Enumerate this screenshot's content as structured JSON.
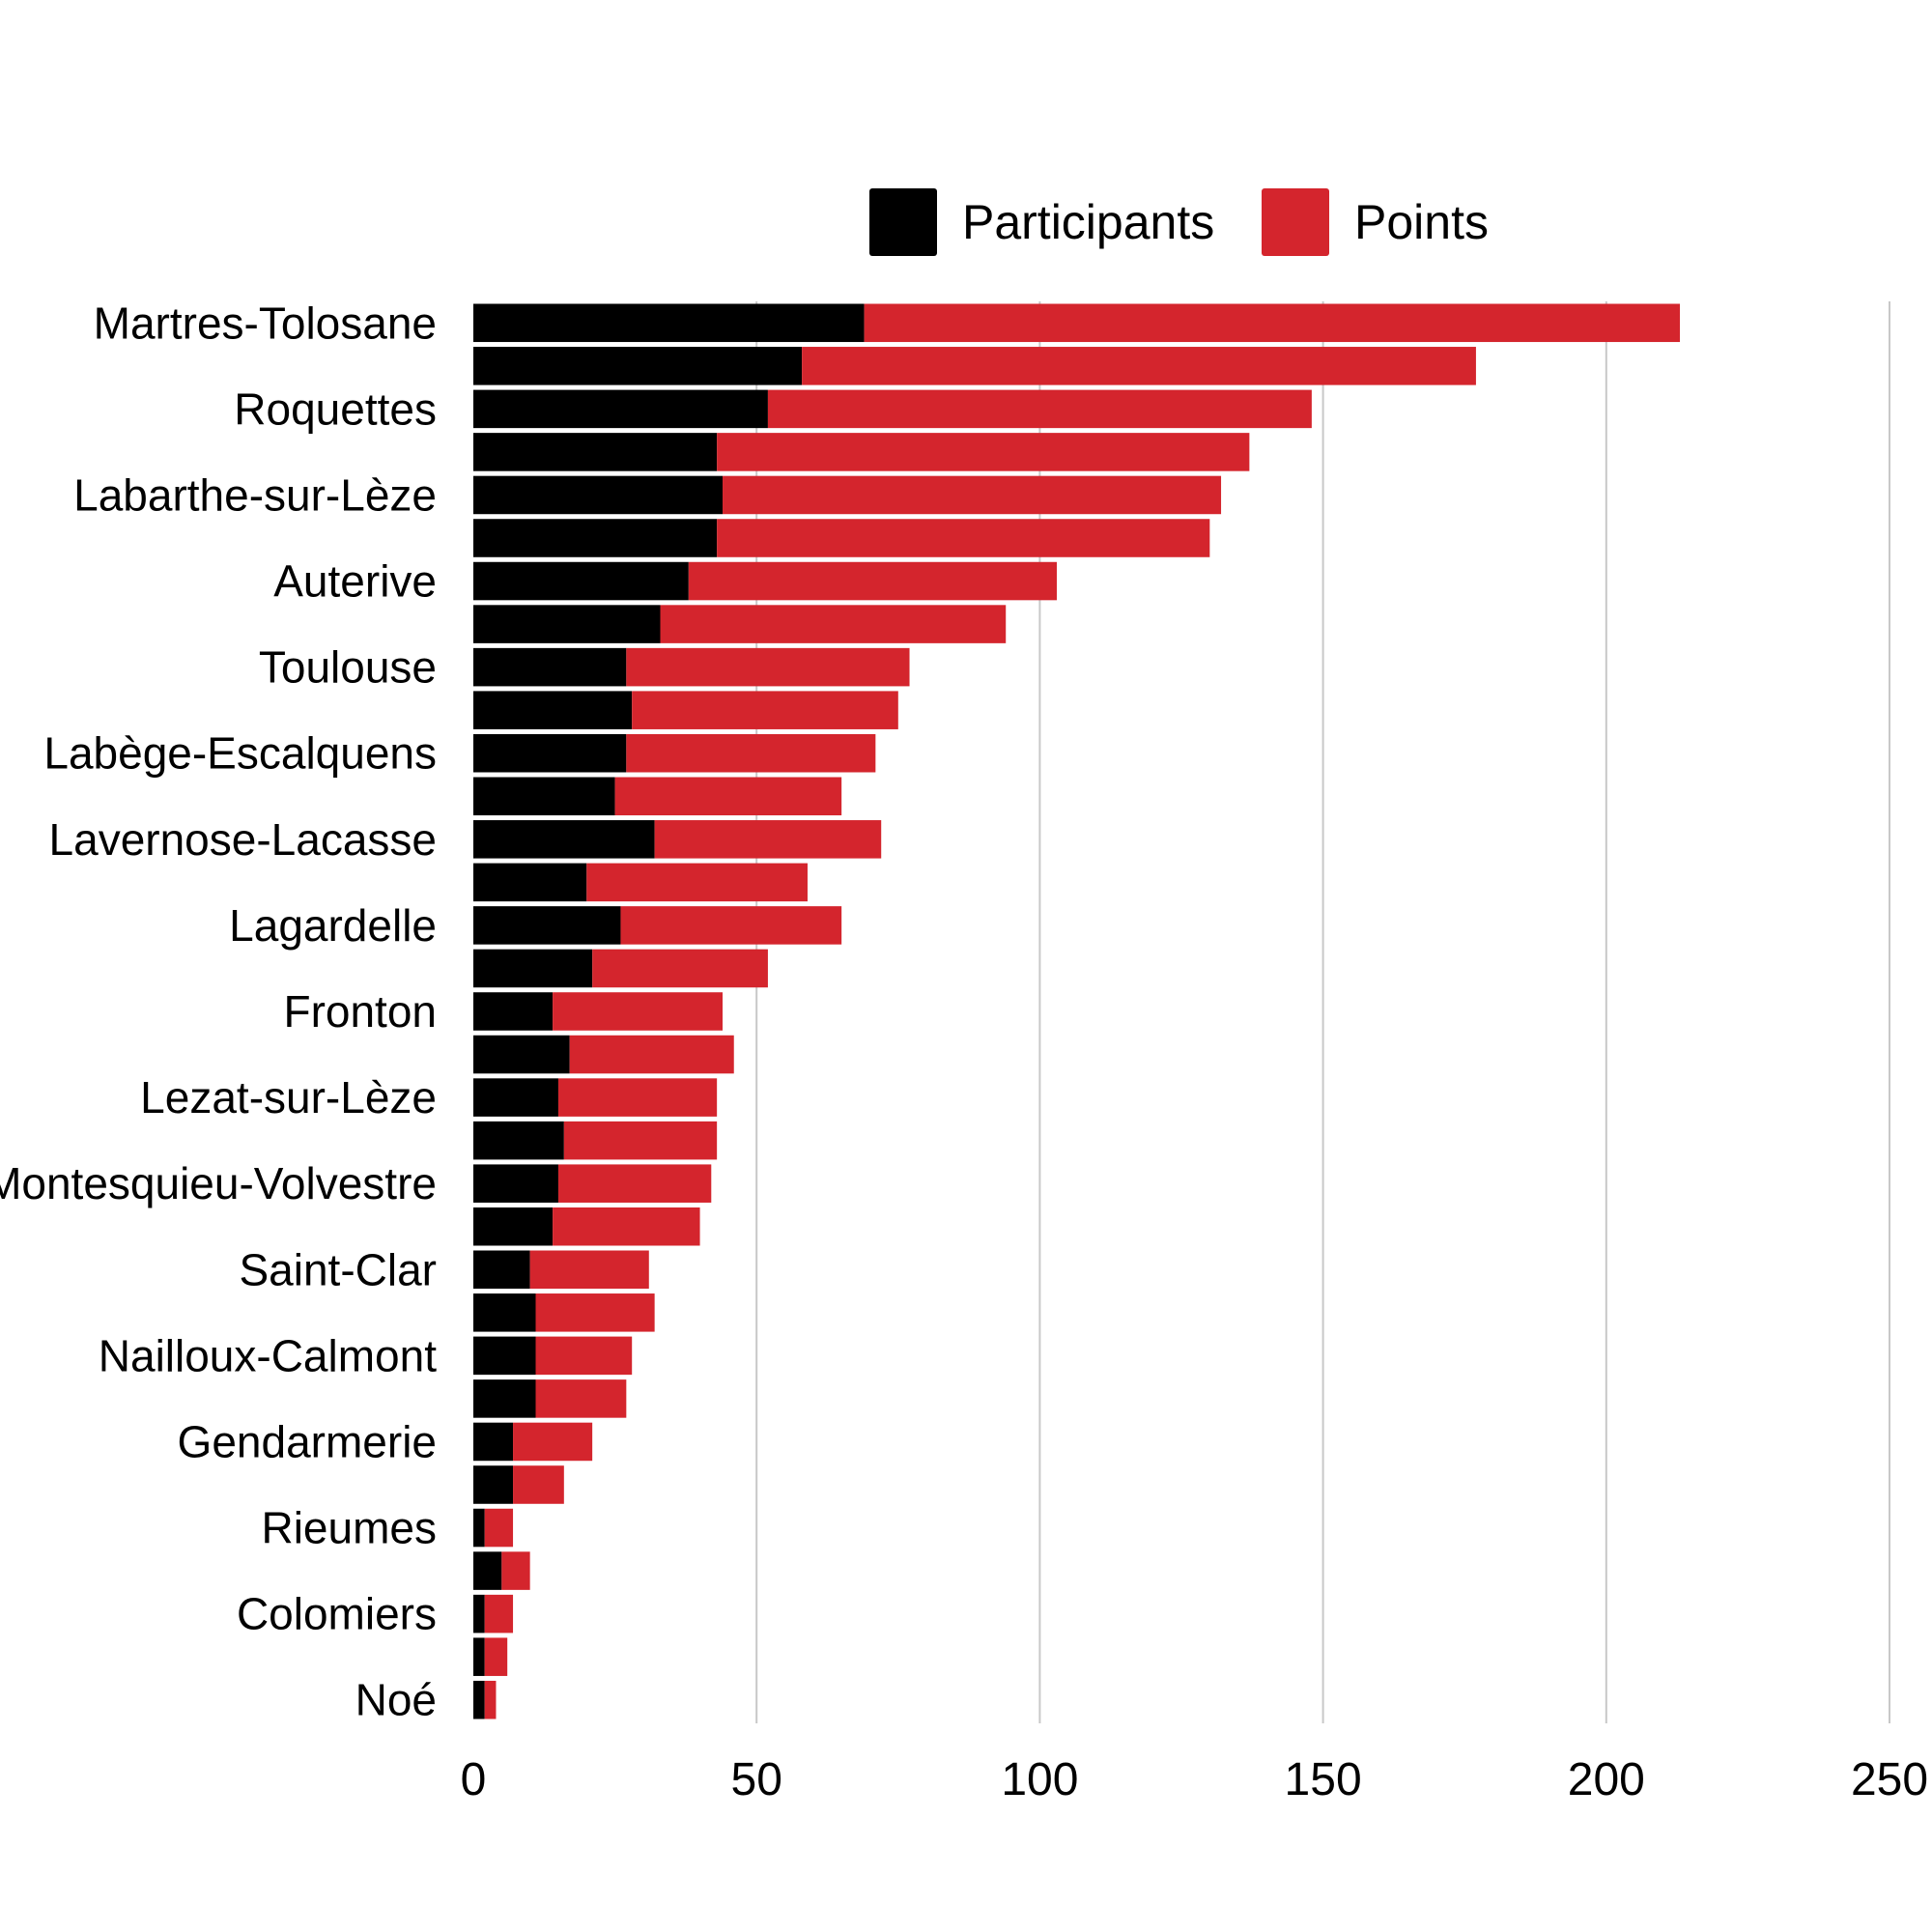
{
  "chart_data": {
    "type": "bar",
    "orientation": "horizontal",
    "stacked": true,
    "legend_position": "top",
    "grid": true,
    "xlim": [
      0,
      250
    ],
    "x_ticks": [
      "0",
      "50",
      "100",
      "150",
      "200",
      "250"
    ],
    "x_tick_values": [
      0,
      50,
      100,
      150,
      200,
      250
    ],
    "categories": [
      "Martres-Tolosane",
      "",
      "Roquettes",
      "",
      "Labarthe-sur-Lèze",
      "",
      "Auterive",
      "",
      "Toulouse",
      "",
      "Labège-Escalquens",
      "",
      "Lavernose-Lacasse",
      "",
      "Lagardelle",
      "",
      "Fronton",
      "",
      "Lezat-sur-Lèze",
      "",
      "Montesquieu-Volvestre",
      "",
      "Saint-Clar",
      "",
      "Nailloux-Calmont",
      "",
      "Gendarmerie",
      "",
      "Rieumes",
      "",
      "Colomiers",
      "",
      "Noé"
    ],
    "series": [
      {
        "name": "Participants",
        "color": "#000000",
        "values": [
          69,
          58,
          52,
          43,
          44,
          43,
          38,
          33,
          27,
          28,
          27,
          25,
          32,
          20,
          26,
          21,
          14,
          17,
          15,
          16,
          15,
          14,
          10,
          11,
          11,
          11,
          7,
          7,
          2,
          5,
          2,
          2,
          2
        ]
      },
      {
        "name": "Points",
        "color": "#d4252d",
        "values": [
          144,
          119,
          96,
          94,
          88,
          87,
          65,
          61,
          50,
          47,
          44,
          40,
          40,
          39,
          39,
          31,
          30,
          29,
          28,
          27,
          27,
          26,
          21,
          21,
          17,
          16,
          14,
          9,
          5,
          5,
          5,
          4,
          2
        ]
      }
    ]
  }
}
